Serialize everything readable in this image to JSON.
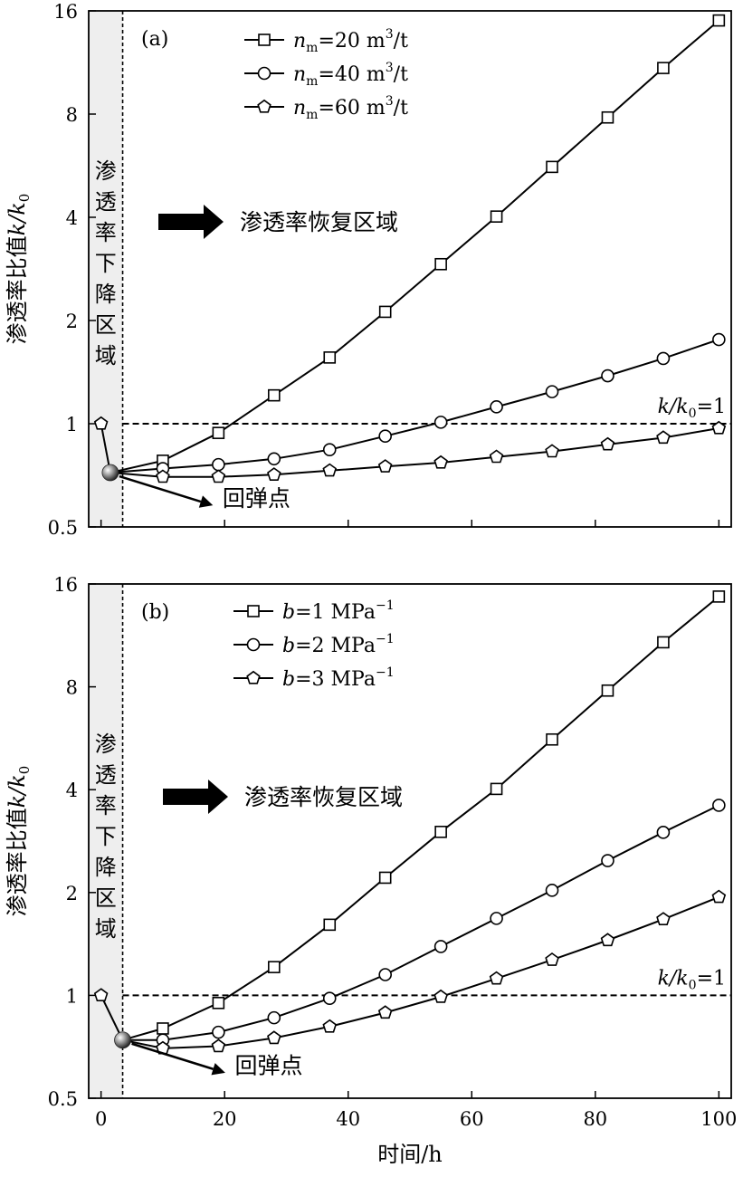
{
  "chart_data": [
    {
      "type": "line",
      "panel_label": "(a)",
      "ylabel": "渗透率比值k/k0",
      "xlabel": "",
      "xlim": [
        -2,
        102
      ],
      "ylim": [
        0.5,
        16
      ],
      "y_scale": "log2",
      "xticks": [
        0,
        20,
        40,
        60,
        80,
        100
      ],
      "xtick_labels": [
        "",
        "",
        "",
        "",
        "",
        ""
      ],
      "yticks": [
        0.5,
        1,
        2,
        4,
        8,
        16
      ],
      "ytick_labels": [
        "0.5",
        "1",
        "2",
        "4",
        "8",
        "16"
      ],
      "initial_point": {
        "x": 0,
        "y": 1.0
      },
      "rebound_point": {
        "x": 1.5,
        "y": 0.72
      },
      "reference_line": {
        "y": 1,
        "label": "k/k0=1"
      },
      "decline_zone": {
        "x_end": 3.5,
        "label": [
          "渗",
          "透",
          "率",
          "下",
          "降",
          "区",
          "域"
        ]
      },
      "recovery_label": "渗透率恢复区域",
      "rebound_label": "回弹点",
      "legend": {
        "position": "top-left"
      },
      "series": [
        {
          "name_prefix": "n",
          "name_sub": "m",
          "name_value": "=20 m",
          "name_sup": "3",
          "name_suffix": "/t",
          "marker": "square",
          "x": [
            10,
            19,
            28,
            37,
            46,
            55,
            64,
            73,
            82,
            91,
            100
          ],
          "y": [
            0.78,
            0.94,
            1.21,
            1.56,
            2.12,
            2.92,
            4.02,
            5.61,
            7.82,
            10.9,
            15.0
          ]
        },
        {
          "name_prefix": "n",
          "name_sub": "m",
          "name_value": "=40 m",
          "name_sup": "3",
          "name_suffix": "/t",
          "marker": "circle",
          "x": [
            10,
            19,
            28,
            37,
            46,
            55,
            64,
            73,
            82,
            91,
            100
          ],
          "y": [
            0.74,
            0.76,
            0.79,
            0.84,
            0.92,
            1.01,
            1.12,
            1.24,
            1.38,
            1.55,
            1.76
          ]
        },
        {
          "name_prefix": "n",
          "name_sub": "m",
          "name_value": "=60 m",
          "name_sup": "3",
          "name_suffix": "/t",
          "marker": "pentagon",
          "x": [
            10,
            19,
            28,
            37,
            46,
            55,
            64,
            73,
            82,
            91,
            100
          ],
          "y": [
            0.7,
            0.7,
            0.71,
            0.73,
            0.75,
            0.77,
            0.8,
            0.83,
            0.87,
            0.91,
            0.97
          ]
        }
      ]
    },
    {
      "type": "line",
      "panel_label": "(b)",
      "ylabel": "渗透率比值k/k0",
      "xlabel": "时间/h",
      "xlim": [
        -2,
        102
      ],
      "ylim": [
        0.5,
        16
      ],
      "y_scale": "log2",
      "xticks": [
        0,
        20,
        40,
        60,
        80,
        100
      ],
      "xtick_labels": [
        "0",
        "20",
        "40",
        "60",
        "80",
        "100"
      ],
      "yticks": [
        0.5,
        1,
        2,
        4,
        8,
        16
      ],
      "ytick_labels": [
        "0.5",
        "1",
        "2",
        "4",
        "8",
        "16"
      ],
      "initial_point": {
        "x": 0,
        "y": 1.0
      },
      "rebound_point": {
        "x": 3.5,
        "y": 0.74
      },
      "reference_line": {
        "y": 1,
        "label": "k/k0=1"
      },
      "decline_zone": {
        "x_end": 3.5,
        "label": [
          "渗",
          "透",
          "率",
          "下",
          "降",
          "区",
          "域"
        ]
      },
      "recovery_label": "渗透率恢复区域",
      "rebound_label": "回弹点",
      "legend": {
        "position": "top-left"
      },
      "series": [
        {
          "name_prefix": "b",
          "name_value": "=1 MPa",
          "name_sup": "−1",
          "marker": "square",
          "x": [
            10,
            19,
            28,
            37,
            46,
            55,
            64,
            73,
            82,
            91,
            100
          ],
          "y": [
            0.8,
            0.95,
            1.21,
            1.61,
            2.21,
            3.01,
            4.02,
            5.61,
            7.8,
            10.8,
            14.7
          ]
        },
        {
          "name_prefix": "b",
          "name_value": "=2 MPa",
          "name_sup": "−1",
          "marker": "circle",
          "x": [
            10,
            19,
            28,
            37,
            46,
            55,
            64,
            73,
            82,
            91,
            100
          ],
          "y": [
            0.74,
            0.78,
            0.86,
            0.98,
            1.15,
            1.39,
            1.68,
            2.03,
            2.48,
            3.0,
            3.6
          ]
        },
        {
          "name_prefix": "b",
          "name_value": "=3 MPa",
          "name_sup": "−1",
          "marker": "pentagon",
          "x": [
            10,
            19,
            28,
            37,
            46,
            55,
            64,
            73,
            82,
            91,
            100
          ],
          "y": [
            0.7,
            0.71,
            0.75,
            0.81,
            0.89,
            0.99,
            1.12,
            1.27,
            1.45,
            1.67,
            1.94
          ]
        }
      ]
    }
  ]
}
